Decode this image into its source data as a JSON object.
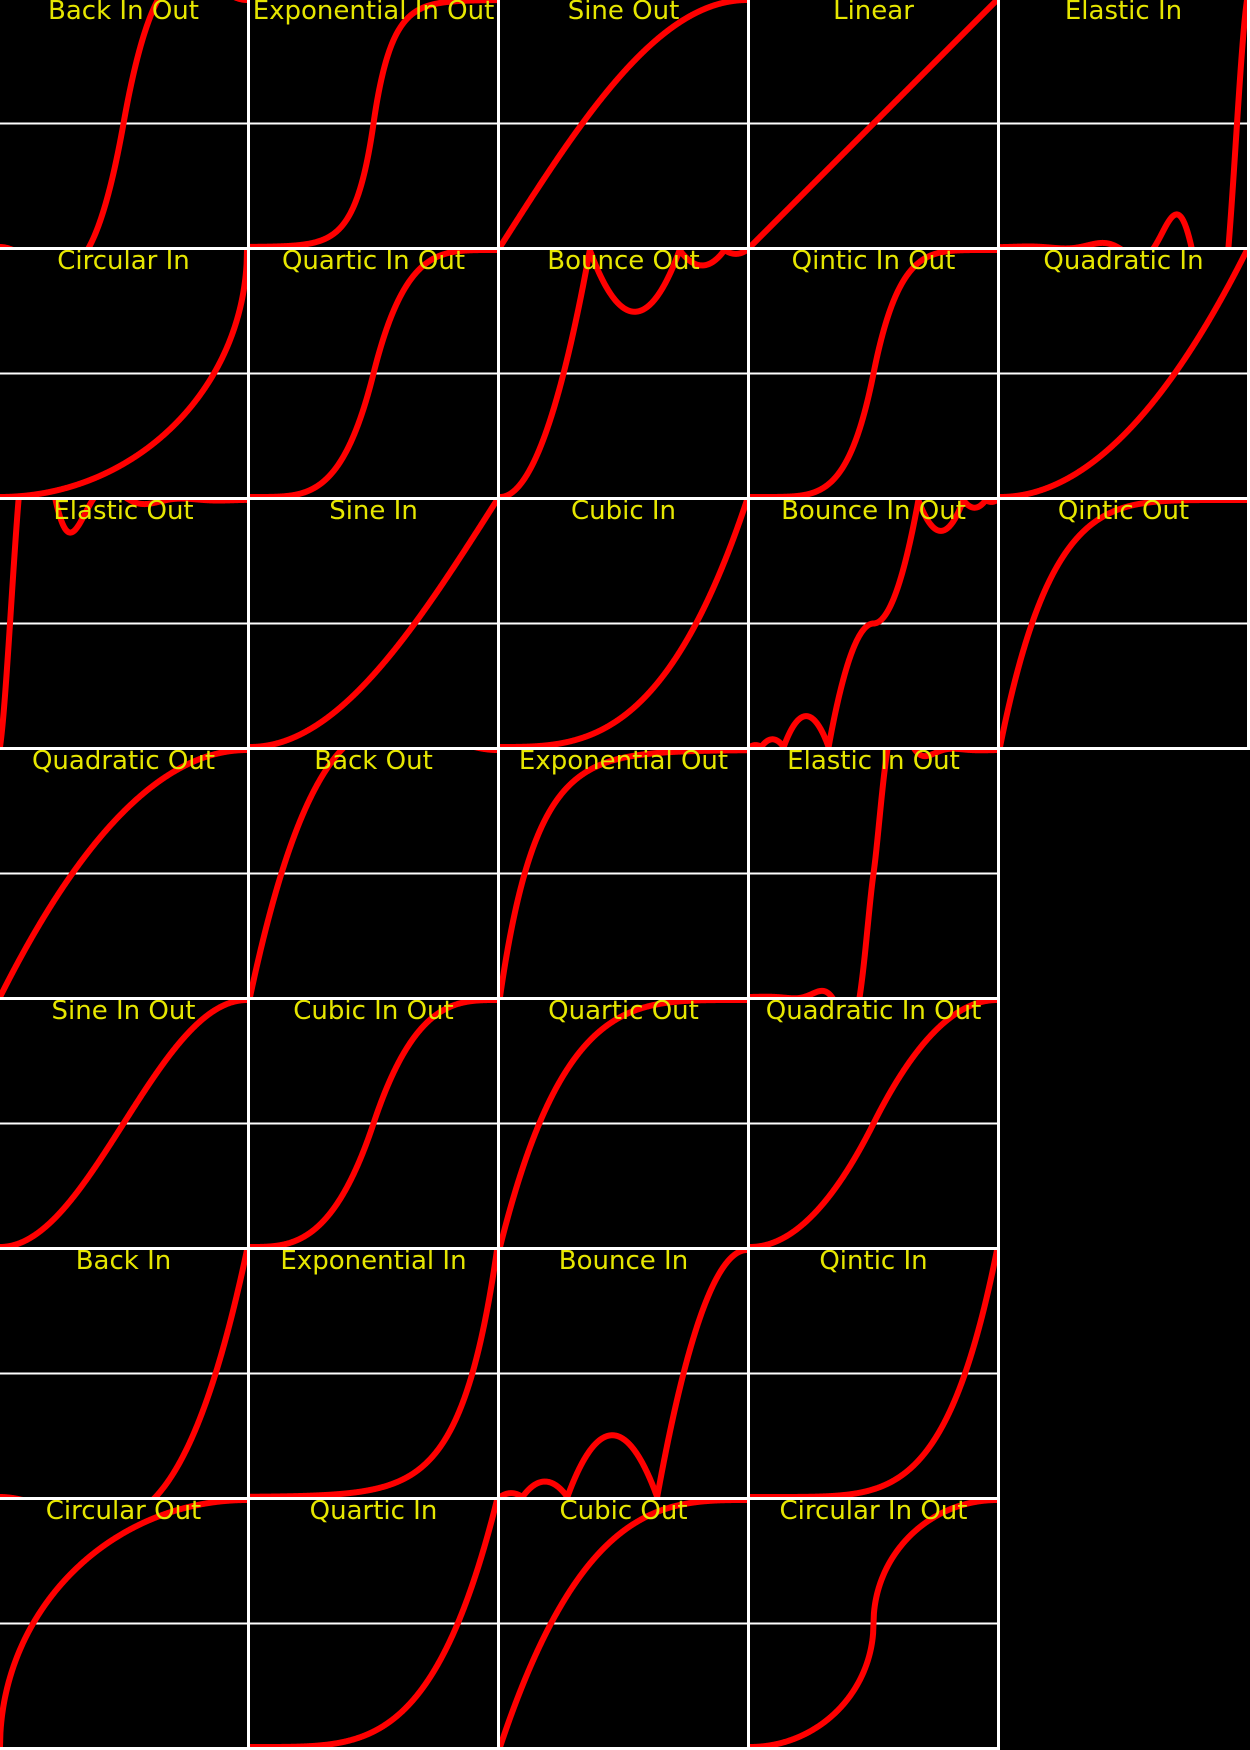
{
  "colors": {
    "background": "#000000",
    "axis": "#ffffff",
    "curve": "#ff0000",
    "label": "#e6e600",
    "separator": "#ffffff"
  },
  "chart_data": [
    {
      "type": "line",
      "title": "Back In Out",
      "fn": "backInOut"
    },
    {
      "type": "line",
      "title": "Circular In",
      "fn": "circIn"
    },
    {
      "type": "line",
      "title": "Elastic Out",
      "fn": "elasticOut"
    },
    {
      "type": "line",
      "title": "Quadratic Out",
      "fn": "quadOut"
    },
    {
      "type": "line",
      "title": "Sine In Out",
      "fn": "sineInOut"
    },
    {
      "type": "line",
      "title": "Back In",
      "fn": "backIn"
    },
    {
      "type": "line",
      "title": "Circular Out",
      "fn": "circOut"
    },
    {
      "type": "line",
      "title": "Exponential In Out",
      "fn": "expoInOut"
    },
    {
      "type": "line",
      "title": "Quartic In Out",
      "fn": "quartInOut"
    },
    {
      "type": "line",
      "title": "Sine In",
      "fn": "sineIn"
    },
    {
      "type": "line",
      "title": "Back Out",
      "fn": "backOut"
    },
    {
      "type": "line",
      "title": "Cubic In Out",
      "fn": "cubicInOut"
    },
    {
      "type": "line",
      "title": "Exponential In",
      "fn": "expoIn"
    },
    {
      "type": "line",
      "title": "Quartic In",
      "fn": "quartIn"
    },
    {
      "type": "line",
      "title": "Sine Out",
      "fn": "sineOut"
    },
    {
      "type": "line",
      "title": "Bounce Out",
      "fn": "bounceOut"
    },
    {
      "type": "line",
      "title": "Cubic In",
      "fn": "cubicIn"
    },
    {
      "type": "line",
      "title": "Exponential Out",
      "fn": "expoOut"
    },
    {
      "type": "line",
      "title": "Quartic Out",
      "fn": "quartOut"
    },
    {
      "type": "line",
      "title": "Bounce In",
      "fn": "bounceIn"
    },
    {
      "type": "line",
      "title": "Cubic Out",
      "fn": "cubicOut"
    },
    {
      "type": "line",
      "title": "Linear",
      "fn": "linear"
    },
    {
      "type": "line",
      "title": "Qintic In Out",
      "fn": "quintInOut"
    },
    {
      "type": "line",
      "title": "Bounce In Out",
      "fn": "bounceInOut"
    },
    {
      "type": "line",
      "title": "Elastic In Out",
      "fn": "elasticInOut"
    },
    {
      "type": "line",
      "title": "Quadratic In Out",
      "fn": "quadInOut"
    },
    {
      "type": "line",
      "title": "Qintic In",
      "fn": "quintIn"
    },
    {
      "type": "line",
      "title": "Circular In Out",
      "fn": "circInOut"
    },
    {
      "type": "line",
      "title": "Elastic In",
      "fn": "elasticIn"
    },
    {
      "type": "line",
      "title": "Quadratic In",
      "fn": "quadIn"
    },
    {
      "type": "line",
      "title": "Qintic Out",
      "fn": "quintOut"
    }
  ]
}
